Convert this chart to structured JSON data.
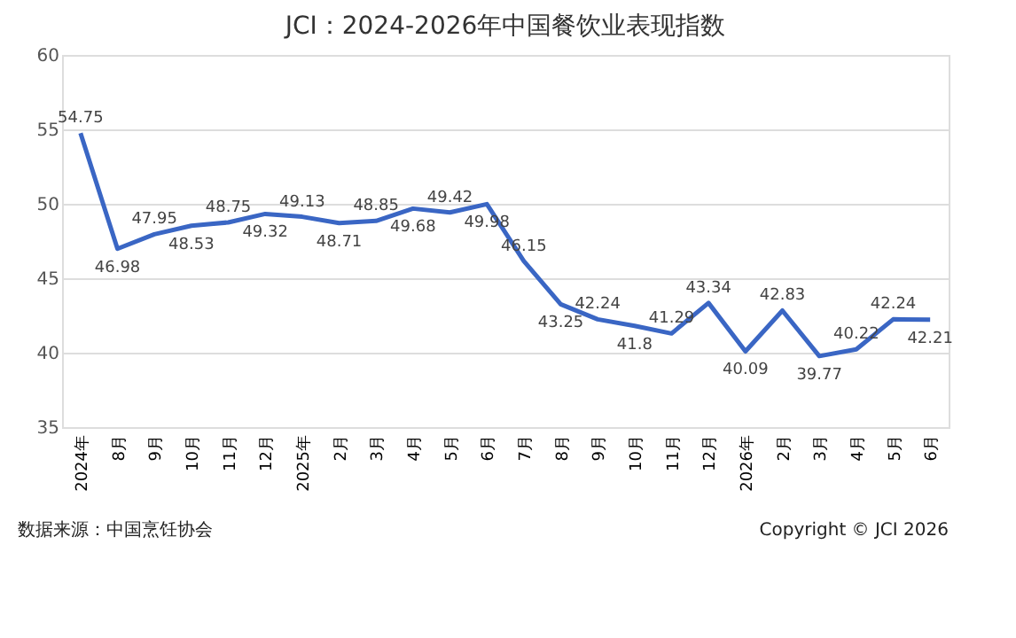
{
  "chart_data": {
    "type": "line",
    "title": "JCI：2024-2026年中国餐饮业表现指数",
    "categories": [
      "2024年",
      "8月",
      "9月",
      "10月",
      "11月",
      "12月",
      "2025年",
      "2月",
      "3月",
      "4月",
      "5月",
      "6月",
      "7月",
      "8月",
      "9月",
      "10月",
      "11月",
      "12月",
      "2026年",
      "2月",
      "3月",
      "4月",
      "5月",
      "6月"
    ],
    "series": [
      {
        "color": "#3a66c4",
        "values": [
          54.75,
          46.98,
          47.95,
          48.53,
          48.75,
          49.32,
          49.13,
          48.71,
          48.85,
          49.68,
          49.42,
          49.98,
          46.15,
          43.25,
          42.24,
          41.8,
          41.29,
          43.34,
          40.09,
          42.83,
          39.77,
          40.22,
          42.24,
          42.21
        ]
      }
    ],
    "ylim": [
      35,
      60
    ],
    "yticks": [
      35,
      40,
      45,
      50,
      55,
      60
    ],
    "grid": "y",
    "data_labels": true,
    "marker": "none",
    "line_style": "solid",
    "annotations": [
      "数据来源：中国烹饪协会",
      "Copyright © JCI 2026"
    ]
  }
}
